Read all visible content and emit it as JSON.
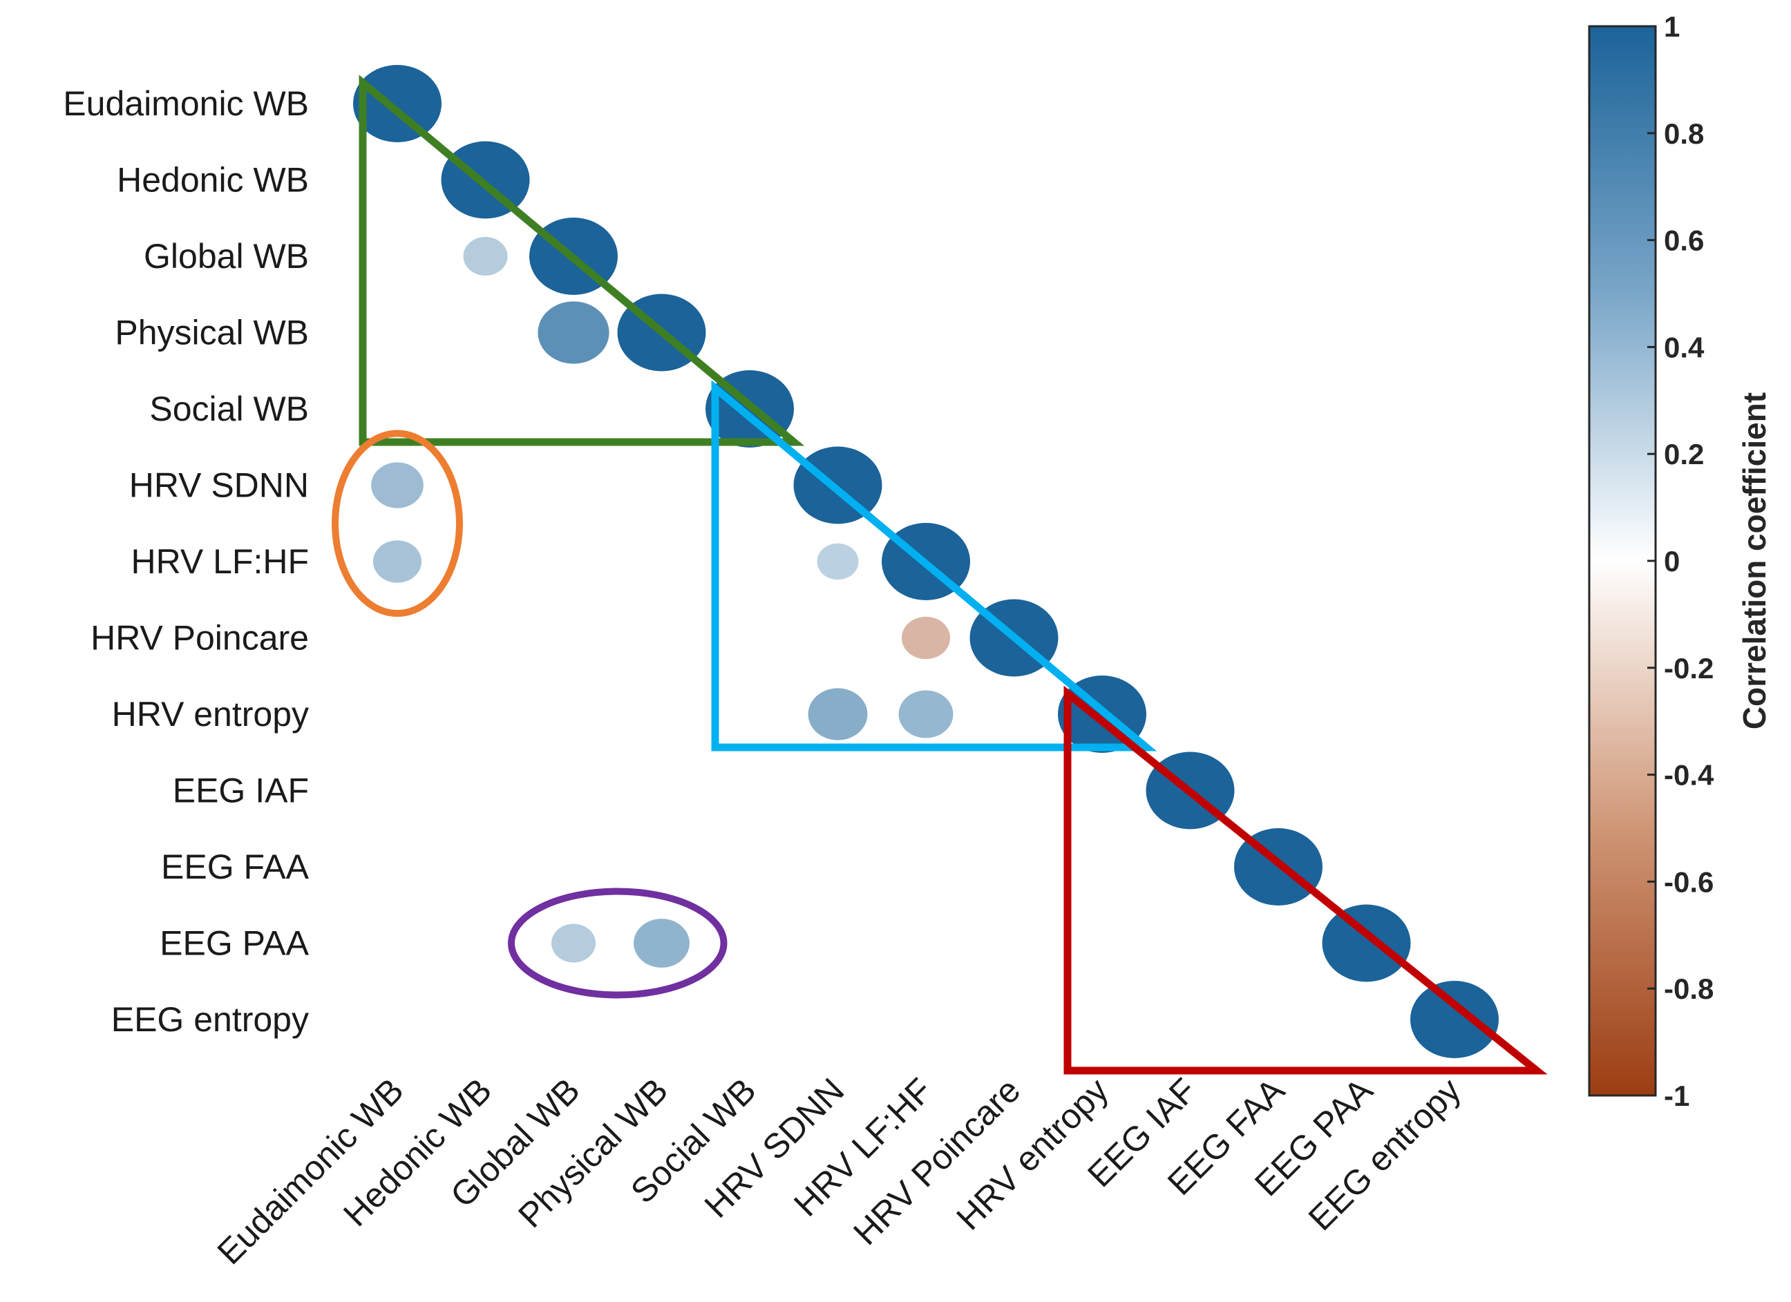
{
  "chart_data": {
    "type": "heatmap",
    "variables": [
      "Eudaimonic WB",
      "Hedonic WB",
      "Global WB",
      "Physical WB",
      "Social WB",
      "HRV SDNN",
      "HRV LF:HF",
      "HRV Poincare",
      "HRV entropy",
      "EEG IAF",
      "EEG FAA",
      "EEG PAA",
      "EEG entropy"
    ],
    "cells": [
      {
        "row": "Eudaimonic WB",
        "col": "Eudaimonic WB",
        "value": 1
      },
      {
        "row": "Hedonic WB",
        "col": "Hedonic WB",
        "value": 1
      },
      {
        "row": "Global WB",
        "col": "Hedonic WB",
        "value": 0.25
      },
      {
        "row": "Global WB",
        "col": "Global WB",
        "value": 1
      },
      {
        "row": "Physical WB",
        "col": "Global WB",
        "value": 0.65
      },
      {
        "row": "Physical WB",
        "col": "Physical WB",
        "value": 1
      },
      {
        "row": "Social WB",
        "col": "Social WB",
        "value": 1
      },
      {
        "row": "HRV SDNN",
        "col": "Eudaimonic WB",
        "value": 0.35
      },
      {
        "row": "HRV SDNN",
        "col": "HRV SDNN",
        "value": 1
      },
      {
        "row": "HRV LF:HF",
        "col": "Eudaimonic WB",
        "value": 0.3
      },
      {
        "row": "HRV LF:HF",
        "col": "HRV SDNN",
        "value": 0.22
      },
      {
        "row": "HRV LF:HF",
        "col": "HRV LF:HF",
        "value": 1
      },
      {
        "row": "HRV Poincare",
        "col": "HRV LF:HF",
        "value": -0.3
      },
      {
        "row": "HRV Poincare",
        "col": "HRV Poincare",
        "value": 1
      },
      {
        "row": "HRV entropy",
        "col": "HRV SDNN",
        "value": 0.45
      },
      {
        "row": "HRV entropy",
        "col": "HRV LF:HF",
        "value": 0.38
      },
      {
        "row": "HRV entropy",
        "col": "HRV entropy",
        "value": 1
      },
      {
        "row": "EEG IAF",
        "col": "EEG IAF",
        "value": 1
      },
      {
        "row": "EEG FAA",
        "col": "EEG FAA",
        "value": 1
      },
      {
        "row": "EEG PAA",
        "col": "Global WB",
        "value": 0.25
      },
      {
        "row": "EEG PAA",
        "col": "Physical WB",
        "value": 0.4
      },
      {
        "row": "EEG PAA",
        "col": "EEG PAA",
        "value": 1
      },
      {
        "row": "EEG entropy",
        "col": "EEG entropy",
        "value": 1
      }
    ],
    "colorbar": {
      "title": "Correlation coefficient",
      "ticks": [
        "1",
        "0.8",
        "0.6",
        "0.4",
        "0.2",
        "0",
        "-0.2",
        "-0.4",
        "-0.6",
        "-0.8",
        "-1"
      ],
      "range": [
        -1,
        1
      ],
      "positive_color": "#1b6399",
      "zero_color": "#ffffff",
      "negative_color": "#9c3d12"
    },
    "highlights": [
      {
        "shape": "triangle",
        "color": "#3f7f24",
        "from": "Eudaimonic WB",
        "to": "Social WB"
      },
      {
        "shape": "triangle",
        "color": "#00b0f0",
        "from": "Social WB",
        "to": "HRV entropy"
      },
      {
        "shape": "triangle",
        "color": "#c00000",
        "from": "HRV entropy",
        "to": "EEG entropy"
      },
      {
        "shape": "ellipse",
        "color": "#ed7d31",
        "rows": [
          "HRV SDNN",
          "HRV LF:HF"
        ],
        "cols": [
          "Eudaimonic WB"
        ]
      },
      {
        "shape": "ellipse",
        "color": "#7030a0",
        "rows": [
          "EEG PAA"
        ],
        "cols": [
          "Global WB",
          "Physical WB"
        ]
      }
    ]
  }
}
